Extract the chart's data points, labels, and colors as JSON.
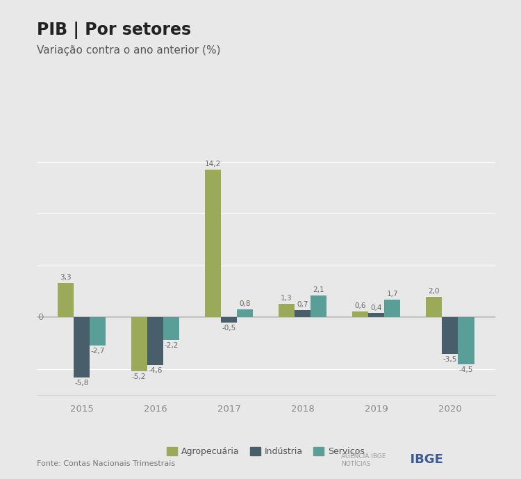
{
  "title": "PIB | Por setores",
  "subtitle": "Variação contra o ano anterior (%)",
  "years": [
    "2015",
    "2016",
    "2017",
    "2018",
    "2019",
    "2020"
  ],
  "agropecuaria": [
    3.3,
    -5.2,
    14.2,
    1.3,
    0.6,
    2.0
  ],
  "industria": [
    -5.8,
    -4.6,
    -0.5,
    0.7,
    0.4,
    -3.5
  ],
  "servicos": [
    -2.7,
    -2.2,
    0.8,
    2.1,
    1.7,
    -4.5
  ],
  "color_agro": "#9aaa58",
  "color_ind": "#485e6a",
  "color_serv": "#5a9e98",
  "background": "#e8e8e8",
  "ylim": [
    -7.5,
    16.5
  ],
  "source": "Fonte: Contas Nacionais Trimestrais",
  "legend_labels": [
    "Agropecuária",
    "Indústria",
    "Serviços"
  ],
  "bar_width": 0.22,
  "title_fontsize": 17,
  "subtitle_fontsize": 11,
  "label_fontsize": 7.5,
  "axis_fontsize": 9.5,
  "source_fontsize": 8,
  "grid_color": "#ffffff",
  "zero_line_color": "#cccccc",
  "tick_color": "#888888"
}
